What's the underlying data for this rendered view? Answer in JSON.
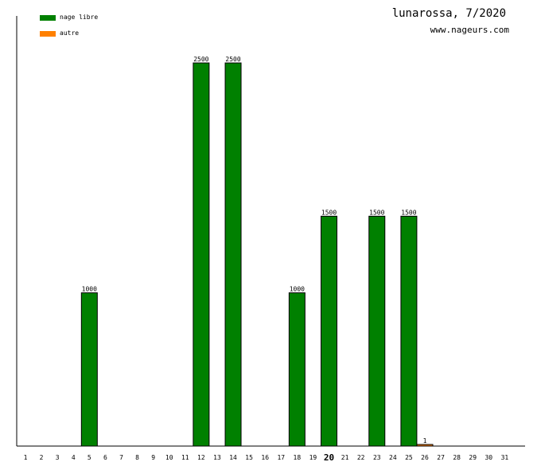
{
  "header": {
    "title": "lunarossa, 7/2020",
    "site": "www.nageurs.com"
  },
  "legend": [
    {
      "label": "nage libre",
      "color": "#008000"
    },
    {
      "label": "autre",
      "color": "#ff8000"
    }
  ],
  "chart_data": {
    "type": "bar",
    "categories": [
      "1",
      "2",
      "3",
      "4",
      "5",
      "6",
      "7",
      "8",
      "9",
      "10",
      "11",
      "12",
      "13",
      "14",
      "15",
      "16",
      "17",
      "18",
      "19",
      "20",
      "21",
      "22",
      "23",
      "24",
      "25",
      "26",
      "27",
      "28",
      "29",
      "30",
      "31"
    ],
    "highlight_category": "20",
    "series": [
      {
        "name": "nage libre",
        "color": "#008000",
        "values": [
          0,
          0,
          0,
          0,
          1000,
          0,
          0,
          0,
          0,
          0,
          0,
          2500,
          0,
          2500,
          0,
          0,
          0,
          1000,
          0,
          1500,
          0,
          0,
          1500,
          0,
          1500,
          0,
          0,
          0,
          0,
          0,
          0
        ]
      },
      {
        "name": "autre",
        "color": "#ff8000",
        "values": [
          0,
          0,
          0,
          0,
          0,
          0,
          0,
          0,
          0,
          0,
          0,
          0,
          0,
          0,
          0,
          0,
          0,
          0,
          0,
          0,
          0,
          0,
          0,
          0,
          0,
          1,
          0,
          0,
          0,
          0,
          0
        ]
      }
    ],
    "ylim": [
      0,
      2500
    ],
    "grid": false,
    "legend_position": "top-left",
    "title": "lunarossa, 7/2020",
    "xlabel": "",
    "ylabel": ""
  }
}
